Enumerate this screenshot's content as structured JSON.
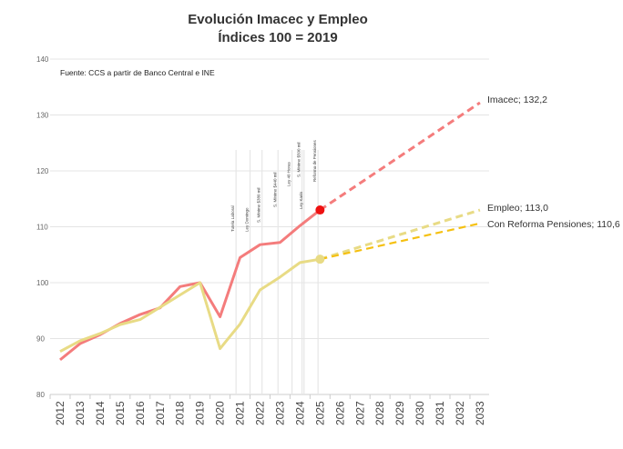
{
  "chart_data": {
    "type": "line",
    "title": "Evolución Imacec y Empleo",
    "subtitle": "Índices 100 = 2019",
    "source_note": "Fuente: CCS a partir de Banco Central e INE",
    "ylim": [
      80,
      140
    ],
    "yticks": [
      "80",
      "90",
      "100",
      "110",
      "120",
      "130",
      "140"
    ],
    "grid": true,
    "categories": [
      "2012",
      "2013",
      "2014",
      "2015",
      "2016",
      "2017",
      "2018",
      "2019",
      "2020",
      "2021",
      "2022",
      "2023",
      "2024",
      "2025",
      "2026",
      "2027",
      "2028",
      "2029",
      "2030",
      "2031",
      "2032",
      "2033"
    ],
    "series": [
      {
        "name": "Imacec",
        "color": "#f47c7c",
        "historical": [
          86.2,
          89.1,
          90.7,
          92.7,
          94.3,
          95.5,
          99.3,
          100,
          93.9,
          104.5,
          106.8,
          107.2,
          110.2,
          113.0
        ],
        "projection_start": 2025,
        "projection_end": 2033,
        "projection_values": [
          113.0,
          132.2
        ],
        "end_label": "Imacec; 132,2"
      },
      {
        "name": "Empleo",
        "color": "#e8db85",
        "historical": [
          87.7,
          89.6,
          90.9,
          92.5,
          93.4,
          95.6,
          97.8,
          100,
          88.2,
          92.6,
          98.7,
          101.0,
          103.6,
          104.2
        ],
        "projection_start": 2025,
        "projection_end": 2033,
        "projection_values": [
          104.2,
          113.0
        ],
        "end_label": "Empleo; 113,0"
      },
      {
        "name": "Con Reforma Pensiones",
        "color": "#f5c010",
        "historical": [],
        "projection_start": 2025,
        "projection_end": 2033,
        "projection_values": [
          104.2,
          110.6
        ],
        "end_label": "Con Reforma Pensiones; 110,6"
      }
    ],
    "markers": [
      {
        "series": "Imacec",
        "year": 2025,
        "value": 113.0,
        "color": "#ee1111"
      },
      {
        "series": "Empleo",
        "year": 2025,
        "value": 104.2,
        "color": "#e8db85"
      }
    ],
    "events": [
      {
        "year": 2020.8,
        "label": "Tutela Laboral"
      },
      {
        "year": 2021.5,
        "label": "Ley Domingo"
      },
      {
        "year": 2022.1,
        "label": "S. Mínimo $380 mil"
      },
      {
        "year": 2022.9,
        "label": "S. Mínimo $440 mil"
      },
      {
        "year": 2023.6,
        "label": "Ley 40 Horas"
      },
      {
        "year": 2024.1,
        "label": "S. Mínimo $500 mil"
      },
      {
        "year": 2024.2,
        "label": "Ley Karin"
      },
      {
        "year": 2024.9,
        "label": "Reforma de Pensiones"
      }
    ]
  }
}
